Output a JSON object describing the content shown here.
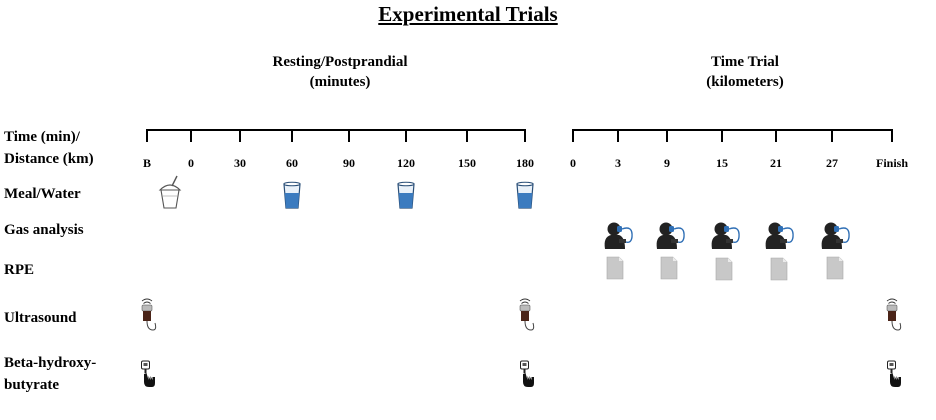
{
  "title": "Experimental Trials",
  "phases": {
    "resting": {
      "line1": "Resting/Postprandial",
      "line2": "(minutes)"
    },
    "time_trial": {
      "line1": "Time Trial",
      "line2": "(kilometers)"
    }
  },
  "rows": {
    "time": {
      "line1": "Time (min)/",
      "line2": "Distance (km)"
    },
    "meal": "Meal/Water",
    "gas": "Gas analysis",
    "rpe": "RPE",
    "ultrasound": "Ultrasound",
    "bhb": {
      "line1": "Beta-hydroxy-",
      "line2": "butyrate"
    }
  },
  "resting_ticks": [
    "B",
    "0",
    "30",
    "60",
    "90",
    "120",
    "150",
    "180"
  ],
  "time_trial_ticks": [
    "0",
    "3",
    "9",
    "15",
    "21",
    "27",
    "Finish"
  ],
  "icons": {
    "meal": "smoothie-cup-icon",
    "water": "water-glass-icon",
    "gas": "gas-analysis-mask-icon",
    "rpe": "rpe-sheet-icon",
    "ultrasound": "ultrasound-probe-icon",
    "bhb": "finger-prick-meter-icon"
  },
  "colors": {
    "water": "#3b7bbf",
    "rpe": "#c8c8c8"
  }
}
